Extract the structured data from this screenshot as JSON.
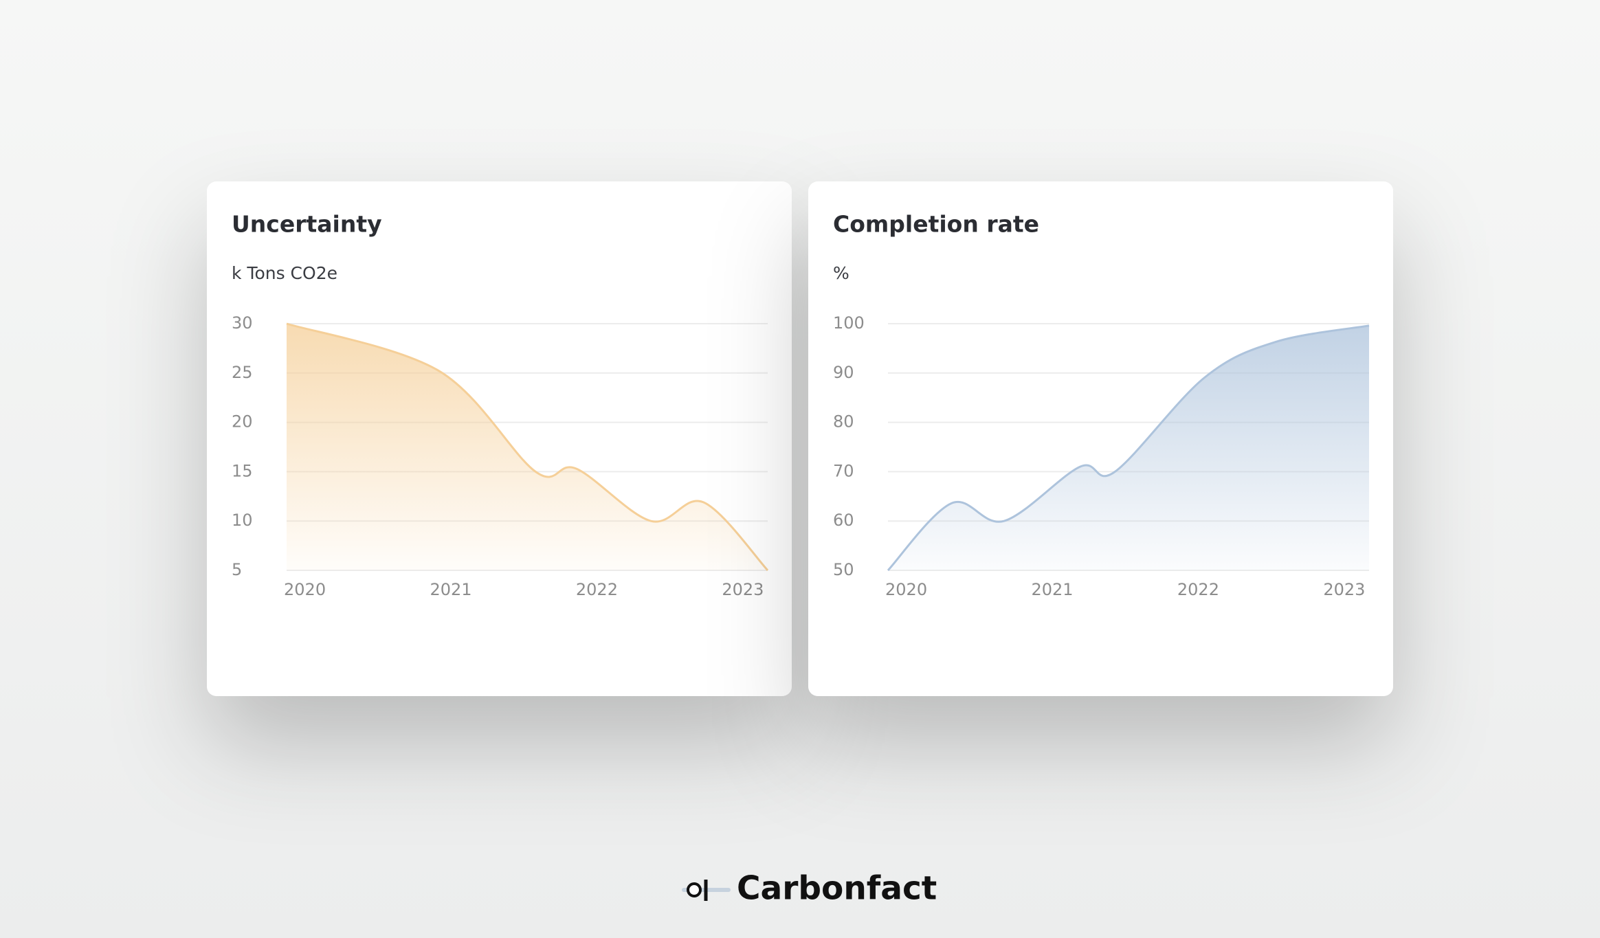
{
  "chart_data": [
    {
      "type": "area",
      "title": "Uncertainty",
      "y_label": "k Tons CO2e",
      "x": [
        2019.875,
        2020.92,
        2021.58,
        2021.86,
        2022.37,
        2022.73,
        2023.17
      ],
      "values": [
        30,
        25.2,
        15,
        15.3,
        10,
        11.9,
        5
      ],
      "color": "#f5cf98",
      "xlim": [
        2019.875,
        2023.17
      ],
      "xticks": [
        2020,
        2021,
        2022,
        2023
      ],
      "ylim": [
        5,
        30
      ],
      "yticks": [
        5,
        10,
        15,
        20,
        25,
        30
      ],
      "grid": true
    },
    {
      "type": "area",
      "title": "Completion rate",
      "y_label": "%",
      "x": [
        2019.875,
        2020.31,
        2020.67,
        2021.19,
        2021.43,
        2022.04,
        2022.53,
        2023.17
      ],
      "values": [
        50,
        63.6,
        60,
        71,
        70,
        89,
        96.3,
        99.6
      ],
      "color": "#adc3dc",
      "xlim": [
        2019.875,
        2023.17
      ],
      "xticks": [
        2020,
        2021,
        2022,
        2023
      ],
      "ylim": [
        50,
        100
      ],
      "yticks": [
        50,
        60,
        70,
        80,
        90,
        100
      ],
      "grid": true
    }
  ],
  "brand": "Carbonfact"
}
